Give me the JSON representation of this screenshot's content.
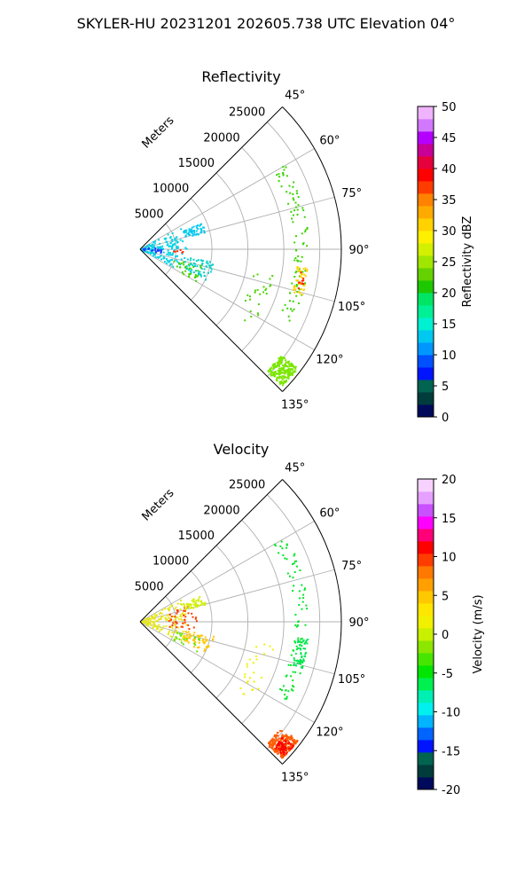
{
  "figure": {
    "title": "SKYLER-HU  20231201  202605.738 UTC Elevation 04°"
  },
  "chart_data": [
    {
      "type": "polar-sector-scatter",
      "title": "Reflectivity",
      "radial_axis_label": "Meters",
      "radial_ticks": [
        5000,
        10000,
        15000,
        20000,
        25000
      ],
      "angle_ticks": [
        "45°",
        "60°",
        "75°",
        "90°",
        "105°",
        "120°",
        "135°"
      ],
      "angle_range_deg": [
        45,
        135
      ],
      "colorbar": {
        "label": "Reflectivity dBZ",
        "range": [
          0,
          50
        ],
        "ticks": [
          0,
          5,
          10,
          15,
          20,
          25,
          30,
          35,
          40,
          45,
          50
        ],
        "colors": [
          "#000a5a",
          "#003c3c",
          "#006450",
          "#0014ff",
          "#0050ff",
          "#0096ff",
          "#00c8f0",
          "#00f0d2",
          "#00f096",
          "#00e664",
          "#1ec800",
          "#64d200",
          "#a0e600",
          "#d2f000",
          "#fff000",
          "#ffd200",
          "#ffaa00",
          "#ff8200",
          "#ff3c00",
          "#ff0000",
          "#e6003c",
          "#c80096",
          "#b400ff",
          "#d278ff",
          "#f0b4ff"
        ]
      },
      "clusters": [
        {
          "name": "near-range clutter",
          "r": [
            200,
            6500
          ],
          "theta": [
            62,
            118
          ],
          "n": 150,
          "color": "#00d2e6"
        },
        {
          "name": "blue returns",
          "r": [
            400,
            3000
          ],
          "theta": [
            84,
            104
          ],
          "n": 20,
          "color": "#1e3cff"
        },
        {
          "name": "cluster-8k-70",
          "r": [
            6500,
            9500
          ],
          "theta": [
            67,
            76
          ],
          "n": 50,
          "color": "#00c8f0"
        },
        {
          "name": "cluster-9k-105",
          "r": [
            6500,
            10500
          ],
          "theta": [
            100,
            115
          ],
          "n": 60,
          "color": "#00d2c8"
        },
        {
          "name": "green-mid",
          "r": [
            5000,
            9000
          ],
          "theta": [
            105,
            120
          ],
          "n": 30,
          "color": "#46d200"
        },
        {
          "name": "red-near",
          "r": [
            4500,
            6000
          ],
          "theta": [
            91,
            95
          ],
          "n": 6,
          "color": "#ff2a00"
        },
        {
          "name": "line-17k",
          "r": [
            16000,
            19000
          ],
          "theta": [
            100,
            125
          ],
          "n": 25,
          "color": "#50d200"
        },
        {
          "name": "arc-22k",
          "r": [
            21500,
            23500
          ],
          "theta": [
            60,
            118
          ],
          "n": 90,
          "color": "#3cd200"
        },
        {
          "name": "arc-22k-strong",
          "r": [
            22000,
            23500
          ],
          "theta": [
            96,
            106
          ],
          "n": 40,
          "color": "#ffd200"
        },
        {
          "name": "arc-22k-red",
          "r": [
            22500,
            23500
          ],
          "theta": [
            98,
            104
          ],
          "n": 10,
          "color": "#ff1e00"
        },
        {
          "name": "blob-135",
          "r": [
            24500,
            27500
          ],
          "theta": [
            127,
            134
          ],
          "n": 220,
          "color": "#7ae600"
        }
      ]
    },
    {
      "type": "polar-sector-scatter",
      "title": "Velocity",
      "radial_axis_label": "Meters",
      "radial_ticks": [
        5000,
        10000,
        15000,
        20000,
        25000
      ],
      "angle_ticks": [
        "45°",
        "60°",
        "75°",
        "90°",
        "105°",
        "120°",
        "135°"
      ],
      "angle_range_deg": [
        45,
        135
      ],
      "colorbar": {
        "label": "Velocity (m/s)",
        "range": [
          -20,
          20
        ],
        "ticks": [
          -20,
          -15,
          -10,
          -5,
          0,
          5,
          10,
          15,
          20
        ],
        "colors": [
          "#000a5a",
          "#003c3c",
          "#006450",
          "#0014ff",
          "#0064ff",
          "#00b4ff",
          "#00f0f0",
          "#00f0b4",
          "#00f050",
          "#00e600",
          "#46e600",
          "#8ce600",
          "#c8f000",
          "#f0f000",
          "#ffe600",
          "#ffc800",
          "#ffa000",
          "#ff7800",
          "#ff3c00",
          "#ff0000",
          "#ff0078",
          "#ff00ff",
          "#c850ff",
          "#e6a0ff",
          "#f8d2ff"
        ]
      },
      "clusters": [
        {
          "name": "near-range clutter",
          "r": [
            200,
            6500
          ],
          "theta": [
            62,
            118
          ],
          "n": 150,
          "color": "#e6e61e"
        },
        {
          "name": "red-radial-8k",
          "r": [
            4000,
            8000
          ],
          "theta": [
            72,
            100
          ],
          "n": 40,
          "color": "#ff3c00"
        },
        {
          "name": "cluster-8k-70",
          "r": [
            6500,
            9500
          ],
          "theta": [
            67,
            76
          ],
          "n": 50,
          "color": "#d2f000"
        },
        {
          "name": "cluster-9k-105",
          "r": [
            6500,
            10500
          ],
          "theta": [
            100,
            115
          ],
          "n": 60,
          "color": "#ffc800"
        },
        {
          "name": "green-mid",
          "r": [
            5000,
            9000
          ],
          "theta": [
            105,
            120
          ],
          "n": 20,
          "color": "#64e600"
        },
        {
          "name": "line-17k",
          "r": [
            16000,
            19000
          ],
          "theta": [
            100,
            125
          ],
          "n": 25,
          "color": "#f0f000"
        },
        {
          "name": "arc-22k",
          "r": [
            21500,
            23500
          ],
          "theta": [
            60,
            118
          ],
          "n": 90,
          "color": "#00e628"
        },
        {
          "name": "arc-22k-strong",
          "r": [
            22000,
            23500
          ],
          "theta": [
            96,
            106
          ],
          "n": 50,
          "color": "#00e650"
        },
        {
          "name": "blob-135",
          "r": [
            24500,
            27500
          ],
          "theta": [
            127,
            134
          ],
          "n": 220,
          "color": "#ff5a00"
        },
        {
          "name": "blob-135-core",
          "r": [
            25500,
            27500
          ],
          "theta": [
            129,
            133
          ],
          "n": 60,
          "color": "#ff0000"
        }
      ]
    }
  ]
}
